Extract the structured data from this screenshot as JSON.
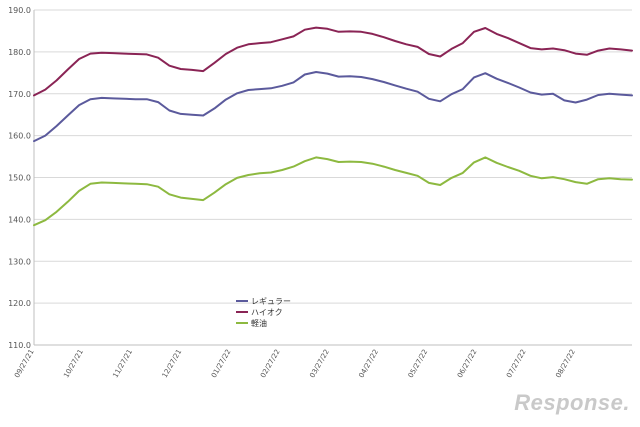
{
  "chart_data": {
    "type": "line",
    "title": "",
    "xlabel": "",
    "ylabel": "",
    "ylim": [
      110,
      190
    ],
    "yticks": [
      "110.0",
      "120.0",
      "130.0",
      "140.0",
      "150.0",
      "160.0",
      "170.0",
      "180.0",
      "190.0"
    ],
    "xticks": [
      "09/27/21",
      "10/27/21",
      "11/27/21",
      "12/27/21",
      "01/27/22",
      "02/27/22",
      "03/27/22",
      "04/27/22",
      "05/27/22",
      "06/27/22",
      "07/27/22",
      "08/27/22"
    ],
    "grid": true,
    "legend_position": "lower-middle",
    "series": [
      {
        "name": "レギュラー",
        "color": "#5b5a9c",
        "values": [
          158.7,
          160.0,
          162.3,
          164.8,
          167.3,
          168.7,
          169.0,
          168.9,
          168.8,
          168.7,
          168.7,
          168.0,
          166.0,
          165.2,
          165.0,
          164.8,
          166.5,
          168.6,
          170.1,
          170.9,
          171.1,
          171.3,
          171.9,
          172.7,
          174.6,
          175.2,
          174.8,
          174.1,
          174.2,
          174.0,
          173.5,
          172.8,
          172.0,
          171.2,
          170.5,
          168.8,
          168.2,
          169.9,
          171.1,
          173.9,
          174.9,
          173.6,
          172.6,
          171.5,
          170.3,
          169.8,
          170.0,
          168.4,
          167.9,
          168.6,
          169.7,
          170.0,
          169.8,
          169.6
        ]
      },
      {
        "name": "ハイオク",
        "color": "#8a2455",
        "values": [
          169.6,
          171.0,
          173.2,
          175.8,
          178.3,
          179.6,
          179.8,
          179.7,
          179.6,
          179.5,
          179.4,
          178.6,
          176.7,
          175.9,
          175.7,
          175.4,
          177.4,
          179.5,
          181.0,
          181.8,
          182.1,
          182.3,
          183.0,
          183.7,
          185.3,
          185.8,
          185.5,
          184.8,
          184.9,
          184.8,
          184.3,
          183.5,
          182.6,
          181.8,
          181.2,
          179.5,
          178.9,
          180.7,
          182.1,
          184.8,
          185.7,
          184.3,
          183.3,
          182.1,
          180.9,
          180.6,
          180.8,
          180.4,
          179.6,
          179.3,
          180.3,
          180.8,
          180.6,
          180.3
        ]
      },
      {
        "name": "軽油",
        "color": "#8db940",
        "values": [
          138.6,
          139.8,
          141.8,
          144.2,
          146.8,
          148.5,
          148.8,
          148.7,
          148.6,
          148.5,
          148.4,
          147.8,
          146.0,
          145.2,
          144.9,
          144.6,
          146.4,
          148.4,
          149.9,
          150.6,
          151.0,
          151.2,
          151.8,
          152.6,
          153.9,
          154.8,
          154.4,
          153.7,
          153.8,
          153.7,
          153.3,
          152.6,
          151.8,
          151.1,
          150.4,
          148.7,
          148.2,
          149.9,
          151.1,
          153.6,
          154.8,
          153.5,
          152.5,
          151.6,
          150.4,
          149.8,
          150.1,
          149.6,
          148.9,
          148.5,
          149.6,
          149.8,
          149.6,
          149.5
        ]
      }
    ]
  },
  "watermark": "Response."
}
